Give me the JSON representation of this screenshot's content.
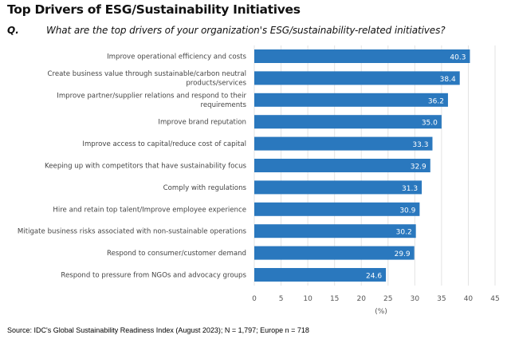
{
  "header": {
    "title": "Top Drivers of ESG/Sustainability Initiatives",
    "q_label": "Q.",
    "question": "What are the top drivers of your organization's ESG/sustainability-related initiatives?"
  },
  "source": "Source: IDC's Global Sustainability Readiness Index (August 2023); N = 1,797; Europe n = 718",
  "chart_data": {
    "type": "bar",
    "orientation": "horizontal",
    "categories": [
      [
        "Improve operational efficiency and costs"
      ],
      [
        "Create business value through sustainable/carbon neutral",
        "products/services"
      ],
      [
        "Improve partner/supplier relations and respond to their",
        "requirements"
      ],
      [
        "Improve brand reputation"
      ],
      [
        "Improve access to capital/reduce cost of capital"
      ],
      [
        "Keeping up with competitors that have sustainability focus"
      ],
      [
        "Comply with regulations"
      ],
      [
        "Hire and retain top talent/Improve employee experience"
      ],
      [
        "Mitigate business risks associated with non-sustainable operations"
      ],
      [
        "Respond to consumer/customer demand"
      ],
      [
        "Respond to pressure from NGOs and advocacy groups"
      ]
    ],
    "values": [
      40.3,
      38.4,
      36.2,
      35.0,
      33.3,
      32.9,
      31.3,
      30.9,
      30.2,
      29.9,
      24.6
    ],
    "value_labels": [
      "40.3",
      "38.4",
      "36.2",
      "35.0",
      "33.3",
      "32.9",
      "31.3",
      "30.9",
      "30.2",
      "29.9",
      "24.6"
    ],
    "xlabel": "(%)",
    "xlim": [
      0,
      45
    ],
    "xticks": [
      "0",
      "5",
      "10",
      "15",
      "20",
      "25",
      "30",
      "35",
      "40",
      "45"
    ],
    "grid": true,
    "bar_color": "#2a78be"
  }
}
